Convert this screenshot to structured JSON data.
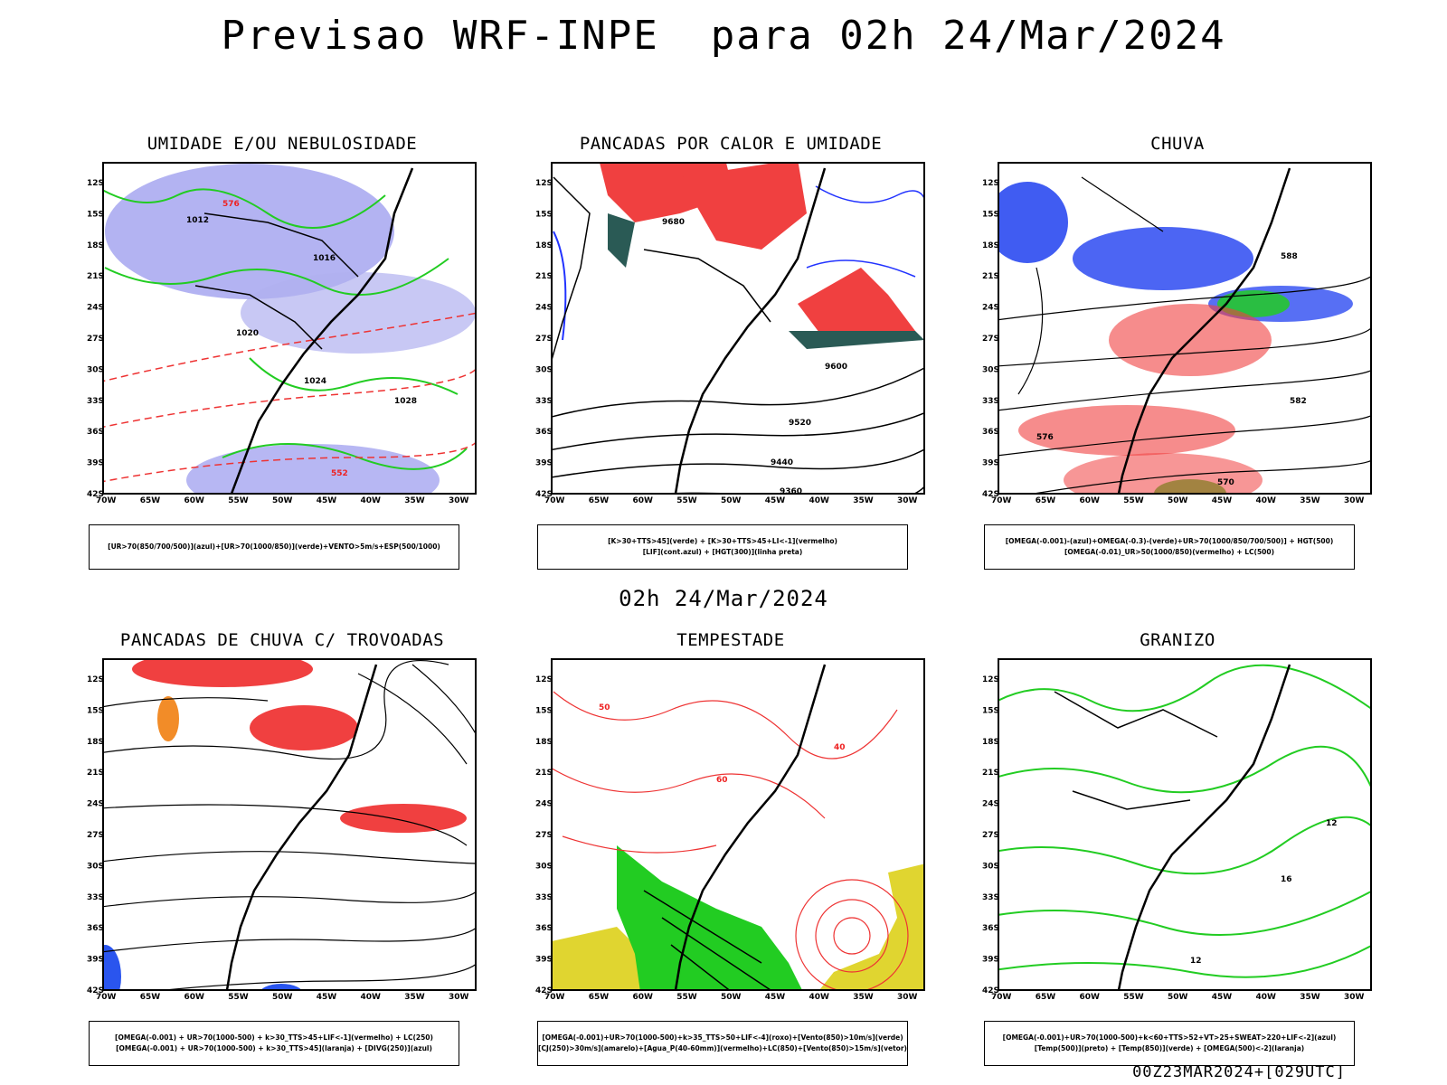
{
  "title": "Previsao WRF-INPE  para 02h 24/Mar/2024",
  "mid_time": "02h 24/Mar/2024",
  "footer": "00Z23MAR2024+[029UTC]",
  "lat_labels": [
    "12S",
    "15S",
    "18S",
    "21S",
    "24S",
    "27S",
    "30S",
    "33S",
    "36S",
    "39S",
    "42S"
  ],
  "lon_labels": [
    "70W",
    "65W",
    "60W",
    "55W",
    "50W",
    "45W",
    "40W",
    "35W",
    "30W"
  ],
  "panels": [
    {
      "title": "UMIDADE E/OU NEBULOSIDADE",
      "legend": [
        "[UR>70(850/700/500)](azul)+[UR>70(1000/850)](verde)+VENTO>5m/s+ESP(500/1000)"
      ],
      "labels": [
        "1012",
        "1016",
        "1020",
        "1024",
        "1028",
        "576",
        "552"
      ]
    },
    {
      "title": "PANCADAS POR CALOR E UMIDADE",
      "legend": [
        "[K>30+TTS>45](verde) + [K>30+TTS>45+LI<-1](vermelho)",
        "[LIF](cont.azul) + [HGT(300)](linha preta)"
      ],
      "labels": [
        "9680",
        "9600",
        "9520",
        "9440",
        "9360"
      ]
    },
    {
      "title": "CHUVA",
      "legend": [
        "[OMEGA(-0.001)-(azul)+OMEGA(-0.3)-(verde)+UR>70(1000/850/700/500)] + HGT(500)",
        "[OMEGA(-0.01)_UR>50(1000/850)(vermelho) + LC(500)"
      ],
      "labels": [
        "588",
        "582",
        "576",
        "570"
      ]
    },
    {
      "title": "PANCADAS DE CHUVA C/ TROVOADAS",
      "legend": [
        "[OMEGA(-0.001) + UR>70(1000-500) + k>30_TTS>45+LIF<-1](vermelho) + LC(250)",
        "[OMEGA(-0.001) + UR>70(1000-500) + k>30_TTS>45](laranja) + [DIVG(250)](azul)"
      ],
      "labels": []
    },
    {
      "title": "TEMPESTADE",
      "legend": [
        "[OMEGA(-0.001)+UR>70(1000-500)+k>35_TTS>50+LIF<-4](roxo)+[Vento(850)>10m/s](verde)",
        "[CJ(250)>30m/s](amarelo)+[Agua_P(40-60mm)](vermelho)+LC(850)+[Vento(850)>15m/s](vetor)"
      ],
      "labels": [
        "40",
        "50",
        "60"
      ]
    },
    {
      "title": "GRANIZO",
      "legend": [
        "[OMEGA(-0.001)+UR>70(1000-500)+k<60+TTS>52+VT>25+SWEAT>220+LIF<-2](azul)",
        "[Temp(500)](preto) + [Temp(850)](verde) + [OMEGA(500)<-2](laranja)"
      ],
      "labels": [
        "12",
        "16",
        "12"
      ]
    }
  ]
}
